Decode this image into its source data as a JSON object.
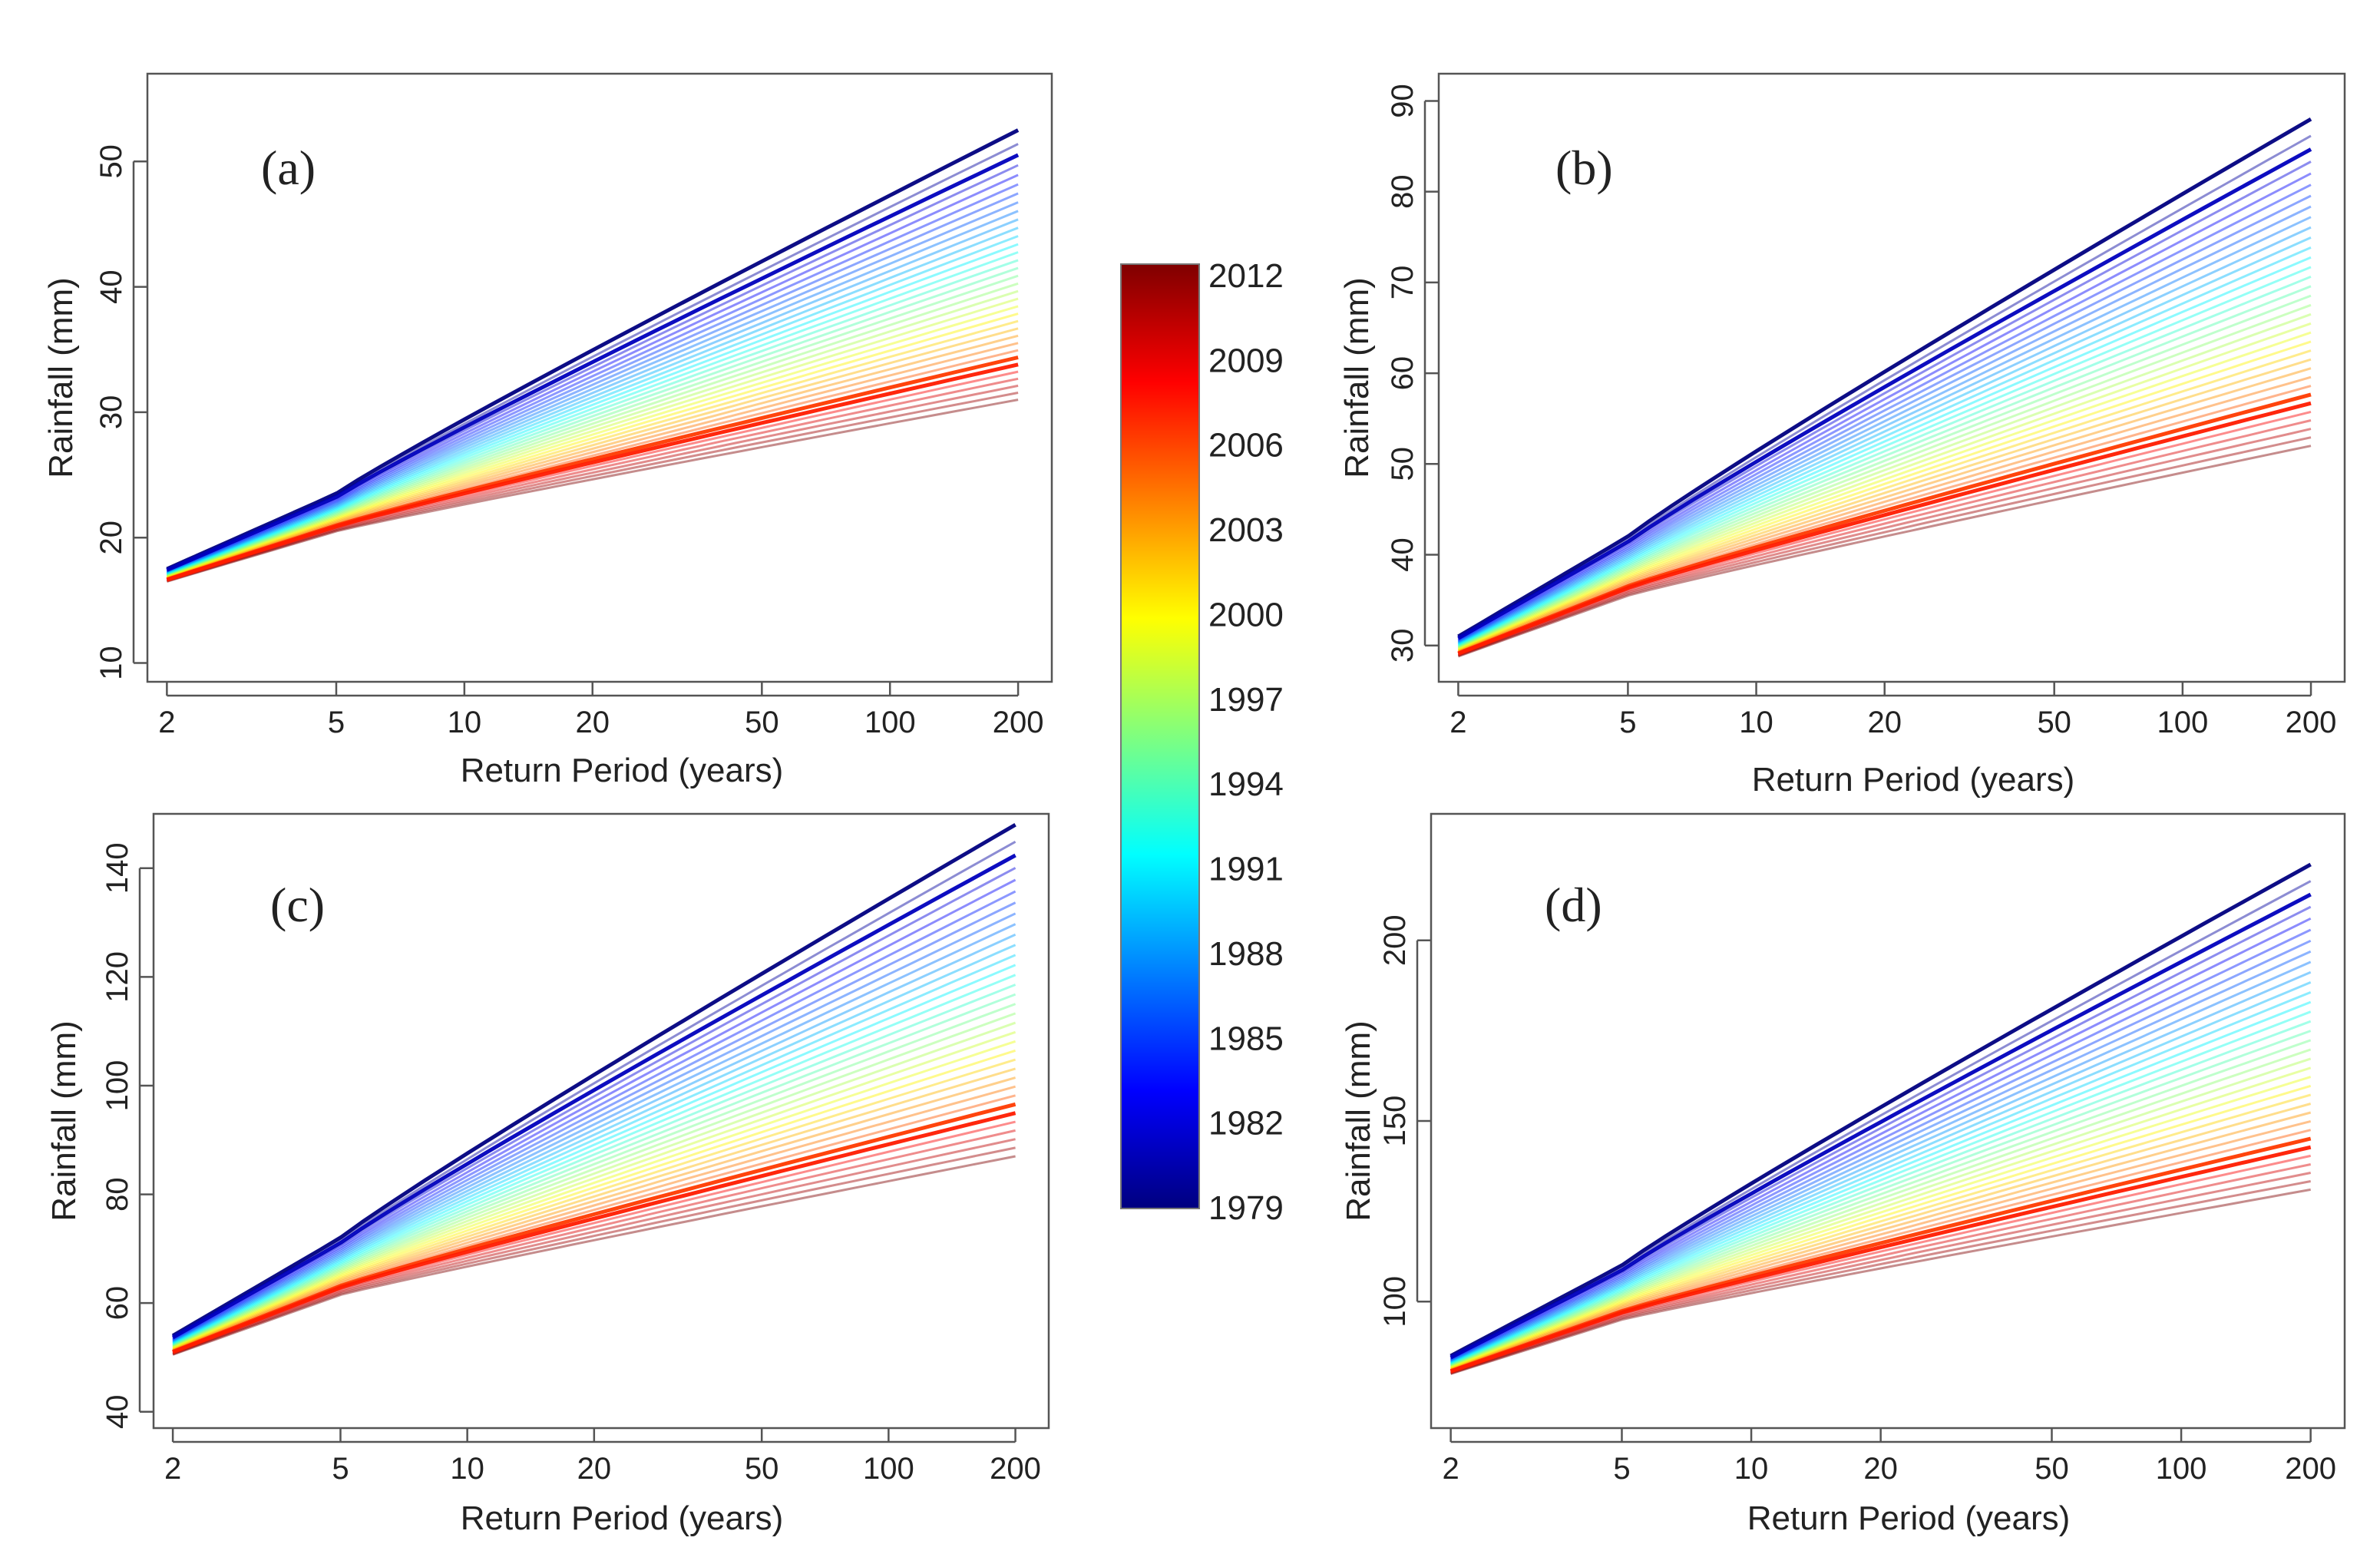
{
  "chart_data": [
    {
      "type": "line",
      "panel": "a",
      "panel_label": "(a)",
      "xlabel": "Return Period (years)",
      "ylabel": "Rainfall (mm)",
      "xscale": "log",
      "xticks": [
        2,
        5,
        10,
        20,
        50,
        100,
        200
      ],
      "xlim": [
        1.8,
        240
      ],
      "yticks": [
        10,
        20,
        30,
        40,
        50
      ],
      "ylim": [
        8.5,
        57
      ],
      "x": [
        2,
        5,
        200
      ],
      "series_start": [
        17.5,
        16.5
      ],
      "series_mid5": [
        23.5,
        20.5
      ],
      "series_end": [
        52.5,
        31.0
      ],
      "highlight_years": [
        1979,
        1981,
        2006,
        2007
      ],
      "grid": false
    },
    {
      "type": "line",
      "panel": "b",
      "panel_label": "(b)",
      "xlabel": "Return Period (years)",
      "ylabel": "Rainfall (mm)",
      "xscale": "log",
      "xticks": [
        2,
        5,
        10,
        20,
        50,
        100,
        200
      ],
      "xlim": [
        1.8,
        240
      ],
      "yticks": [
        30,
        40,
        50,
        60,
        70,
        80,
        90
      ],
      "ylim": [
        26,
        93
      ],
      "x": [
        2,
        5,
        200
      ],
      "series_start": [
        31.0,
        28.8
      ],
      "series_mid5": [
        42.0,
        35.5
      ],
      "series_end": [
        88.0,
        52.0
      ],
      "highlight_years": [
        1979,
        1981,
        2006,
        2007
      ],
      "grid": false
    },
    {
      "type": "line",
      "panel": "c",
      "panel_label": "(c)",
      "xlabel": "Return Period (years)",
      "ylabel": "Rainfall (mm)",
      "xscale": "log",
      "xticks": [
        2,
        5,
        10,
        20,
        50,
        100,
        200
      ],
      "xlim": [
        1.8,
        240
      ],
      "yticks": [
        40,
        60,
        80,
        100,
        120,
        140
      ],
      "ylim": [
        37,
        150
      ],
      "x": [
        2,
        5,
        200
      ],
      "series_start": [
        54.0,
        50.5
      ],
      "series_mid5": [
        72.0,
        61.5
      ],
      "series_end": [
        148.0,
        87.0
      ],
      "highlight_years": [
        1979,
        1981,
        2006,
        2007
      ],
      "grid": false
    },
    {
      "type": "line",
      "panel": "d",
      "panel_label": "(d)",
      "xlabel": "Return Period (years)",
      "ylabel": "Rainfall (mm)",
      "xscale": "log",
      "xticks": [
        2,
        5,
        10,
        20,
        50,
        100,
        200
      ],
      "xlim": [
        1.8,
        240
      ],
      "yticks": [
        100,
        150,
        200
      ],
      "ylim": [
        65,
        235
      ],
      "x": [
        2,
        5,
        200
      ],
      "series_start": [
        85.0,
        80.0
      ],
      "series_mid5": [
        110.0,
        95.0
      ],
      "series_end": [
        221.0,
        131.0
      ],
      "highlight_years": [
        1979,
        1981,
        2006,
        2007
      ],
      "grid": false
    }
  ],
  "colorbar": {
    "title": "",
    "min_year": 1979,
    "max_year": 2012,
    "tick_labels": [
      "2012",
      "2009",
      "2006",
      "2003",
      "2000",
      "1997",
      "1994",
      "1991",
      "1988",
      "1985",
      "1982",
      "1979"
    ],
    "colors_low_to_high": [
      "#00007f",
      "#0000ff",
      "#007fff",
      "#00ffff",
      "#7fff7f",
      "#ffff00",
      "#ff7f00",
      "#ff0000",
      "#7f0000"
    ]
  },
  "series_years": [
    1979,
    1980,
    1981,
    1982,
    1983,
    1984,
    1985,
    1986,
    1987,
    1988,
    1989,
    1990,
    1991,
    1992,
    1993,
    1994,
    1995,
    1996,
    1997,
    1998,
    1999,
    2000,
    2001,
    2002,
    2003,
    2004,
    2005,
    2006,
    2007,
    2008,
    2009,
    2010,
    2011,
    2012
  ]
}
